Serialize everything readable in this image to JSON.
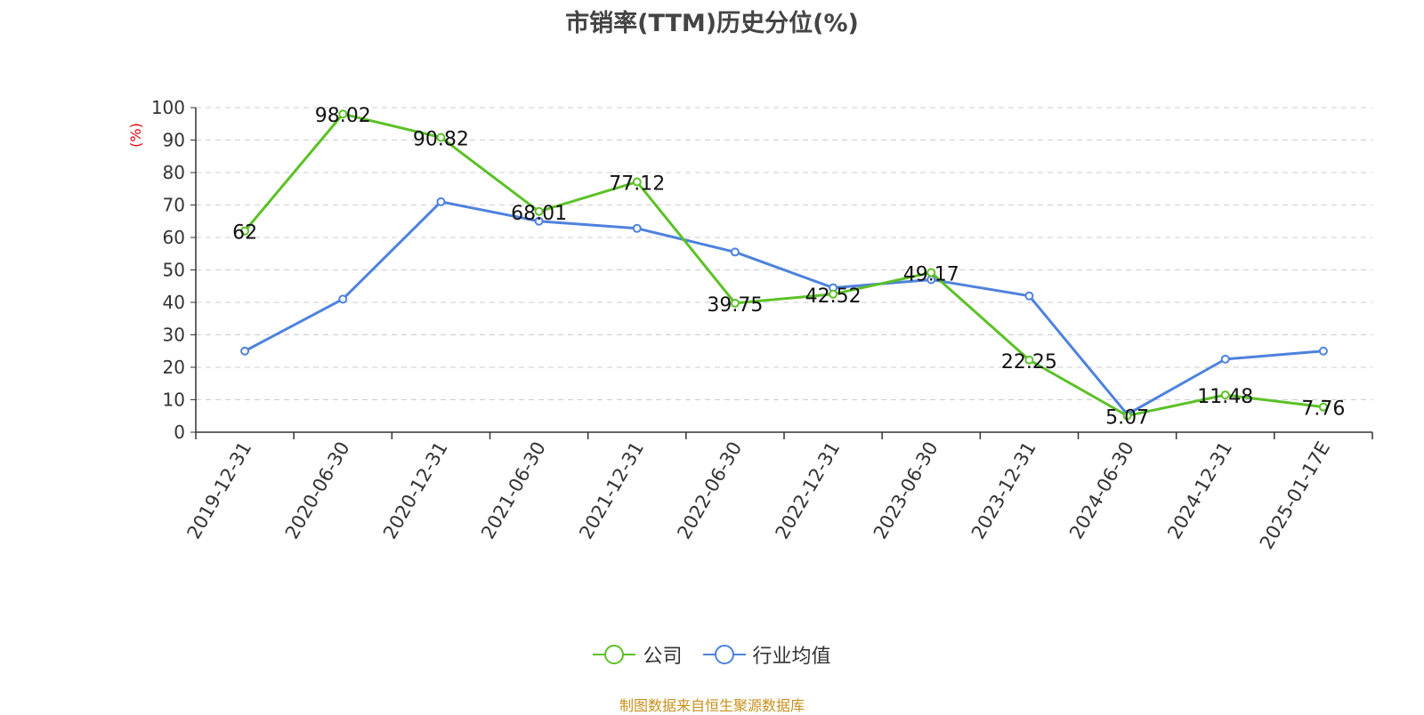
{
  "title": "市销率(TTM)历史分位(%)",
  "source_note": "制图数据来自恒生聚源数据库",
  "colors": {
    "company": "#5cc127",
    "industry": "#4e82dc",
    "ylabel": "#e3000f",
    "axis": "#333333",
    "grid": "#cccccc",
    "source": "#c8901c"
  },
  "chart_data": {
    "type": "line",
    "title": "市销率(TTM)历史分位(%)",
    "xlabel": "",
    "ylabel": "(%)",
    "ylim": [
      0,
      100
    ],
    "yticks": [
      0,
      10,
      20,
      30,
      40,
      50,
      60,
      70,
      80,
      90,
      100
    ],
    "grid": true,
    "legend_position": "bottom-center",
    "categories": [
      "2019-12-31",
      "2020-06-30",
      "2020-12-31",
      "2021-06-30",
      "2021-12-31",
      "2022-06-30",
      "2022-12-31",
      "2023-06-30",
      "2023-12-31",
      "2024-06-30",
      "2024-12-31",
      "2025-01-17E"
    ],
    "series": [
      {
        "name": "公司",
        "color": "#5cc127",
        "values": [
          62,
          98.02,
          90.82,
          68.01,
          77.12,
          39.75,
          42.52,
          49.17,
          22.25,
          5.07,
          11.48,
          7.76
        ],
        "labels": [
          "62",
          "98.02",
          "90.82",
          "68.01",
          "77.12",
          "39.75",
          "42.52",
          "49.17",
          "22.25",
          "5.07",
          "11.48",
          "7.76"
        ]
      },
      {
        "name": "行业均值",
        "color": "#4e82dc",
        "values": [
          25,
          41,
          71,
          65,
          62.8,
          55.5,
          44.5,
          47,
          42,
          5.5,
          22.5,
          25
        ]
      }
    ]
  }
}
